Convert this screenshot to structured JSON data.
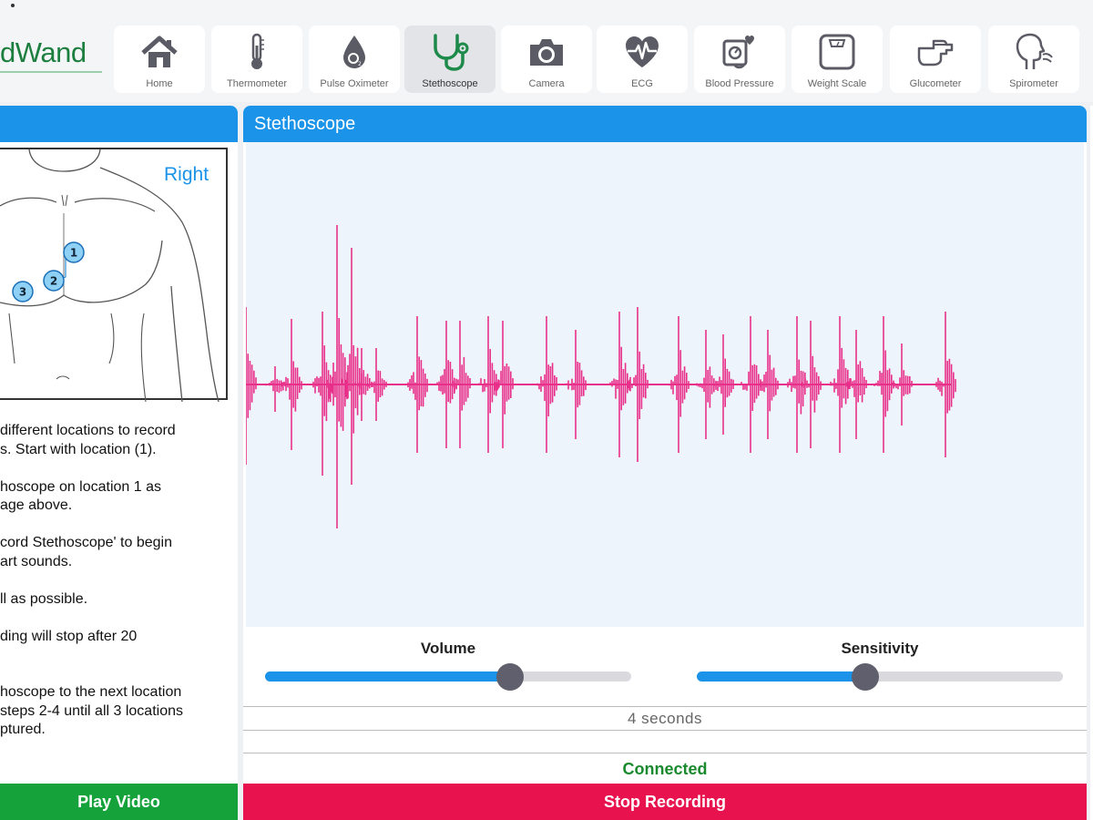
{
  "app": {
    "logo_text": "dWand"
  },
  "nav": {
    "items": [
      {
        "label": "Home",
        "icon": "home-icon"
      },
      {
        "label": "Thermometer",
        "icon": "thermometer-icon"
      },
      {
        "label": "Pulse Oximeter",
        "icon": "oxygen-drop-icon"
      },
      {
        "label": "Stethoscope",
        "icon": "stethoscope-icon",
        "active": true
      },
      {
        "label": "Camera",
        "icon": "camera-icon"
      },
      {
        "label": "ECG",
        "icon": "heart-pulse-icon"
      },
      {
        "label": "Blood Pressure",
        "icon": "blood-pressure-icon"
      },
      {
        "label": "Weight Scale",
        "icon": "scale-icon"
      },
      {
        "label": "Glucometer",
        "icon": "glucometer-icon"
      },
      {
        "label": "Spirometer",
        "icon": "spirometer-icon"
      }
    ]
  },
  "left_panel": {
    "diagram": {
      "side_label": "Right",
      "markers": [
        "1",
        "2",
        "3"
      ]
    },
    "instructions": [
      "different locations to record\ns. Start with location (1).",
      "hoscope on location 1 as\nage above.",
      "cord Stethoscope' to begin\nart sounds.",
      "ll as possible.",
      "ding will stop after 20",
      "hoscope to the next location\nsteps 2-4 until all 3 locations\nptured."
    ],
    "play_button": "Play Video"
  },
  "main_panel": {
    "title": "Stethoscope",
    "waveform_color": "#e8308a",
    "volume": {
      "label": "Volume",
      "level": 0.67
    },
    "sensitivity": {
      "label": "Sensitivity",
      "level": 0.46
    },
    "duration": "4  seconds",
    "status": "Connected",
    "stop_button": "Stop Recording"
  },
  "colors": {
    "accent_blue": "#1a93e8",
    "play_green": "#16a23a",
    "stop_red": "#e8134e",
    "connected_green": "#1a8a2e",
    "logo_green": "#1d7f3f"
  }
}
